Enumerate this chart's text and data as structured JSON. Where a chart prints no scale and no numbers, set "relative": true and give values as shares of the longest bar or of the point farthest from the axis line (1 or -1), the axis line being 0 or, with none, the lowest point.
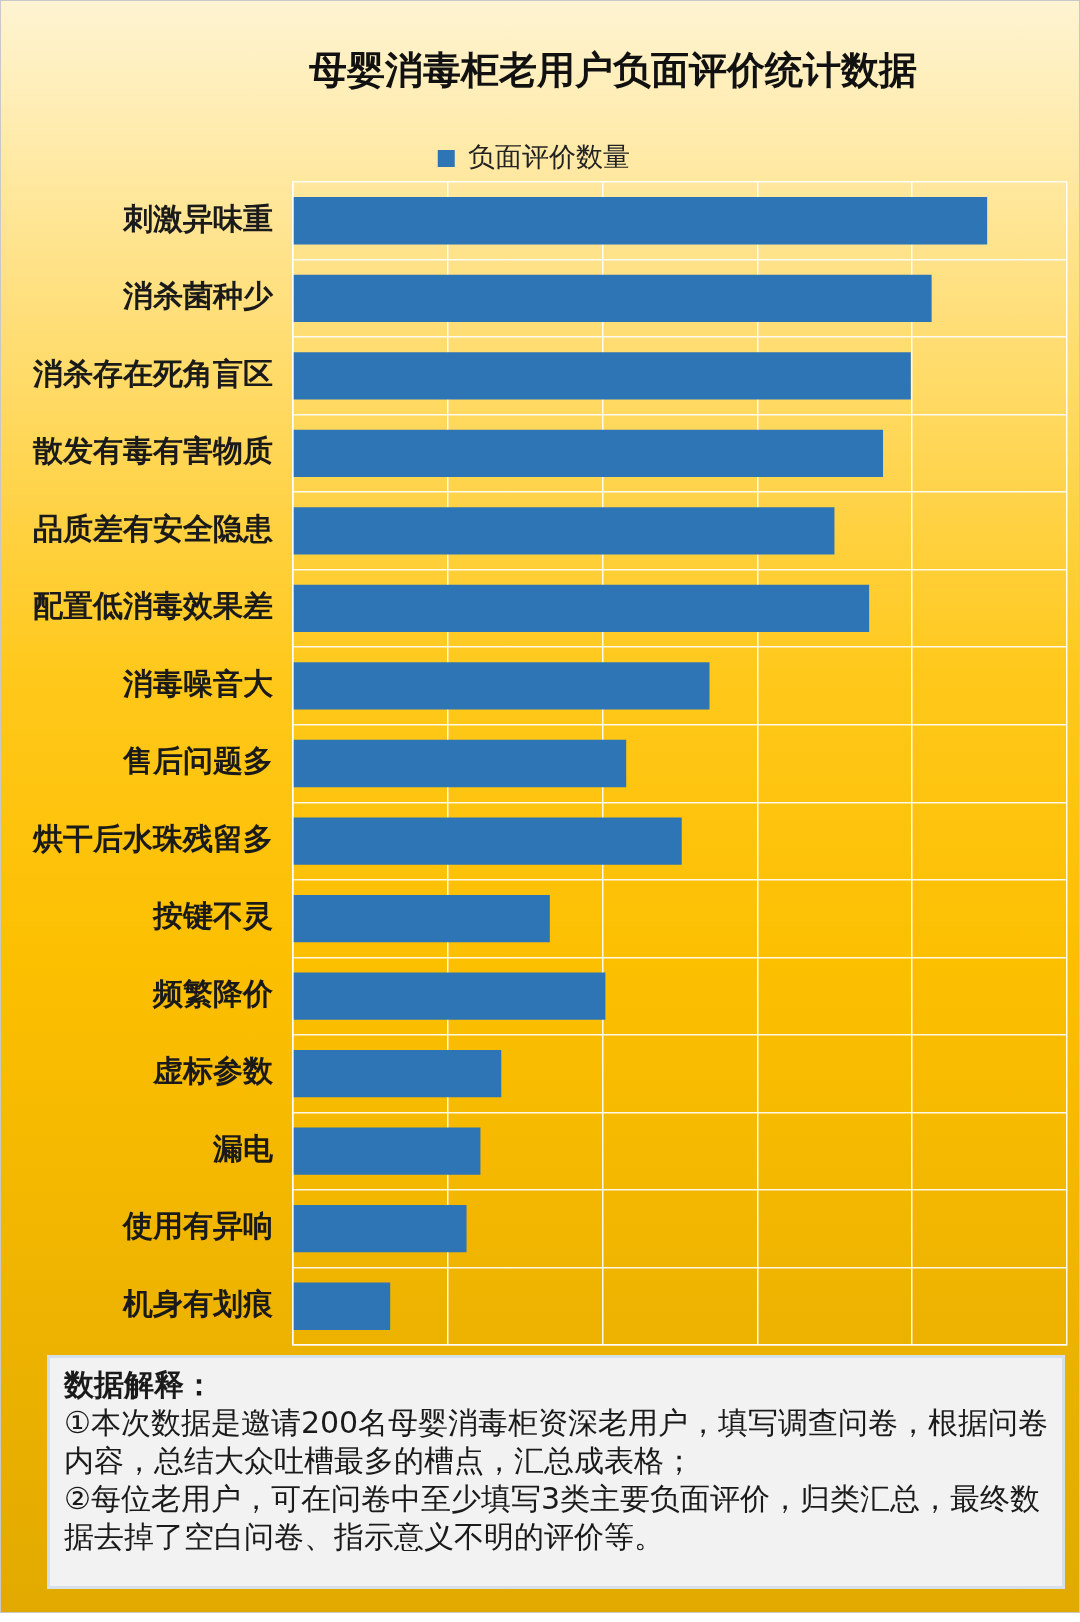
{
  "chart_data": {
    "type": "bar",
    "orientation": "horizontal",
    "relative": true,
    "title": "母婴消毒柜老用户负面评价统计数据",
    "categories": [
      "刺激异味重",
      "消杀菌种少",
      "消杀存在死角盲区",
      "散发有毒有害物质",
      "品质差有安全隐患",
      "配置低消毒效果差",
      "消毒噪音大",
      "售后问题多",
      "烘干后水珠残留多",
      "按键不灵",
      "频繁降价",
      "虚标参数",
      "漏电",
      "使用有异响",
      "机身有划痕"
    ],
    "series": [
      {
        "name": "负面评价数量",
        "color": "#2e75b6",
        "values": [
          1,
          0.92,
          0.89,
          0.85,
          0.78,
          0.83,
          0.6,
          0.48,
          0.56,
          0.37,
          0.45,
          0.3,
          0.27,
          0.25,
          0.14
        ]
      }
    ],
    "legend": "top",
    "grid": true,
    "annotations": [
      "数据解释：",
      "①本次数据是邀请200名母婴消毒柜资深老用户，填写调查问卷，根据问卷内容，总结大众吐槽最多的槽点，汇总成表格；",
      "②每位老用户，可在问卷中至少填写3类主要负面评价，归类汇总，最终数据去掉了空白问卷、指示意义不明的评价等。"
    ]
  }
}
